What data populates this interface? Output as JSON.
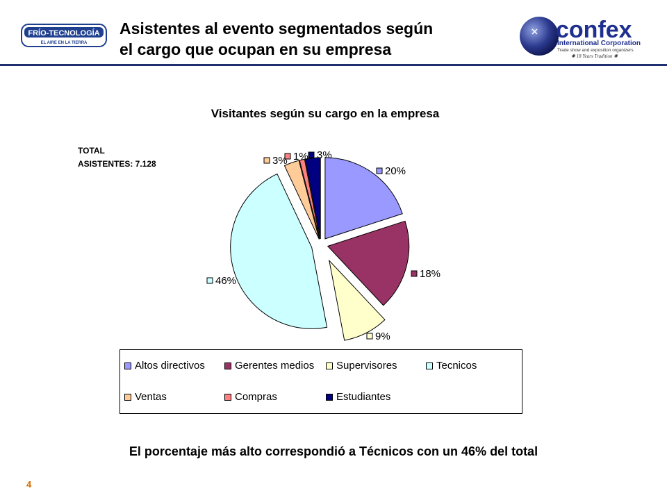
{
  "header": {
    "title_line1": "Asistentes al evento segmentados según",
    "title_line2": "el cargo que ocupan en su empresa",
    "logo_left_text1": "FRÍO-TECNOLOGÍA",
    "logo_left_text2": "EL AIRE EN LA TIERRA",
    "logo_right_text1": "confex",
    "logo_right_text2": "International Corporation",
    "logo_right_text3": "Trade show and exposition organizers",
    "logo_right_text4": "✺ 18 Years Tradition ✺"
  },
  "total": {
    "line1": "TOTAL",
    "line2": "ASISTENTES: 7.128"
  },
  "caption": "El porcentaje más alto correspondió a Técnicos con un 46% del total",
  "page_number": "4",
  "colors": {
    "header_line": "#1f2f6f"
  },
  "chart_data": {
    "type": "pie",
    "title": "Visitantes según su cargo en la empresa",
    "categories": [
      "Altos directivos",
      "Gerentes medios",
      "Supervisores",
      "Tecnicos",
      "Ventas",
      "Compras",
      "Estudiantes"
    ],
    "values": [
      20,
      18,
      9,
      46,
      3,
      1,
      3
    ],
    "labels": [
      "20%",
      "18%",
      "9%",
      "46%",
      "3%",
      "1%",
      "3%"
    ],
    "colors": [
      "#9999ff",
      "#993366",
      "#ffffcc",
      "#ccffff",
      "#ffcc99",
      "#ff8080",
      "#000080"
    ],
    "exploded": true,
    "legend_position": "bottom"
  }
}
